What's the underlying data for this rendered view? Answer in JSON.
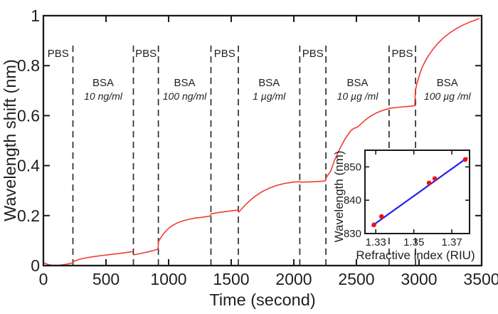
{
  "figure": {
    "description": "Sensorgram of wavelength shift versus time for alternating PBS buffer and BSA concentration steps, with inset refractive-index calibration plot",
    "background_color": "#ffffff",
    "frame_color": "#1a1a1a",
    "divider_color": "#2e2e2e"
  },
  "chart_data": {
    "type": "line",
    "title": "",
    "xlabel": "Time (second)",
    "ylabel": "Wavelength shift (nm)",
    "xlim": [
      0,
      3500
    ],
    "ylim": [
      0,
      1
    ],
    "grid": false,
    "x_ticks": [
      0,
      500,
      1000,
      1500,
      2000,
      2500,
      3000,
      3500
    ],
    "y_ticks": [
      0,
      0.2,
      0.4,
      0.6,
      0.8,
      1
    ],
    "y_tick_labels": [
      "0",
      "0.2",
      "0.4",
      "0.6",
      "0.8",
      "1"
    ],
    "line_color": "#f23b32",
    "phase_boundaries_s": [
      236,
      719,
      918,
      1338,
      1557,
      2048,
      2256,
      2761,
      2972
    ],
    "regions": [
      {
        "label": "PBS",
        "sublabel": "",
        "start": 0,
        "end": 236
      },
      {
        "label": "BSA",
        "sublabel": "10 ng/ml",
        "start": 236,
        "end": 719
      },
      {
        "label": "PBS",
        "sublabel": "",
        "start": 719,
        "end": 918
      },
      {
        "label": "BSA",
        "sublabel": "100 ng/ml",
        "start": 918,
        "end": 1338
      },
      {
        "label": "PBS",
        "sublabel": "",
        "start": 1338,
        "end": 1557
      },
      {
        "label": "BSA",
        "sublabel": "1 µg/ml",
        "start": 1557,
        "end": 2048
      },
      {
        "label": "PBS",
        "sublabel": "",
        "start": 2048,
        "end": 2256
      },
      {
        "label": "BSA",
        "sublabel": "10 µg /ml",
        "start": 2256,
        "end": 2761
      },
      {
        "label": "PBS",
        "sublabel": "",
        "start": 2761,
        "end": 2972
      },
      {
        "label": "BSA",
        "sublabel": "100 µg /ml",
        "start": 2972,
        "end": 3480
      }
    ],
    "series": [
      {
        "name": "wavelength-shift",
        "color": "#f23b32",
        "segments": [
          [
            [
              0,
              0.013
            ],
            [
              30,
              0.005
            ],
            [
              70,
              0.001
            ],
            [
              120,
              0.001
            ],
            [
              170,
              0.004
            ],
            [
              210,
              0.008
            ],
            [
              233,
              0.011
            ],
            [
              245,
              0.017
            ],
            [
              285,
              0.025
            ],
            [
              330,
              0.03
            ],
            [
              390,
              0.035
            ],
            [
              460,
              0.04
            ],
            [
              530,
              0.044
            ],
            [
              600,
              0.048
            ],
            [
              660,
              0.052
            ],
            [
              714,
              0.056
            ]
          ],
          [
            [
              724,
              0.043
            ],
            [
              760,
              0.047
            ],
            [
              800,
              0.051
            ],
            [
              845,
              0.056
            ],
            [
              880,
              0.06
            ],
            [
              905,
              0.064
            ],
            [
              916,
              0.069
            ],
            [
              919,
              0.096
            ],
            [
              938,
              0.112
            ],
            [
              960,
              0.128
            ],
            [
              985,
              0.142
            ],
            [
              1010,
              0.153
            ],
            [
              1040,
              0.163
            ],
            [
              1075,
              0.172
            ],
            [
              1115,
              0.179
            ],
            [
              1160,
              0.185
            ],
            [
              1210,
              0.19
            ],
            [
              1260,
              0.193
            ],
            [
              1305,
              0.196
            ],
            [
              1336,
              0.199
            ],
            [
              1340,
              0.207
            ],
            [
              1395,
              0.212
            ],
            [
              1455,
              0.216
            ],
            [
              1515,
              0.22
            ],
            [
              1555,
              0.222
            ],
            [
              1560,
              0.214
            ],
            [
              1585,
              0.228
            ],
            [
              1615,
              0.244
            ],
            [
              1655,
              0.263
            ],
            [
              1700,
              0.281
            ],
            [
              1750,
              0.297
            ],
            [
              1805,
              0.31
            ],
            [
              1865,
              0.321
            ],
            [
              1930,
              0.329
            ],
            [
              1995,
              0.334
            ],
            [
              2046,
              0.336
            ],
            [
              2055,
              0.334
            ],
            [
              2135,
              0.335
            ],
            [
              2215,
              0.337
            ],
            [
              2252,
              0.339
            ],
            [
              2262,
              0.355
            ],
            [
              2295,
              0.378
            ],
            [
              2325,
              0.422
            ],
            [
              2365,
              0.465
            ],
            [
              2410,
              0.508
            ],
            [
              2455,
              0.54
            ],
            [
              2480,
              0.549
            ],
            [
              2505,
              0.553
            ],
            [
              2535,
              0.566
            ],
            [
              2570,
              0.582
            ],
            [
              2610,
              0.597
            ],
            [
              2655,
              0.61
            ],
            [
              2705,
              0.62
            ],
            [
              2745,
              0.626
            ],
            [
              2759,
              0.629
            ],
            [
              2770,
              0.63
            ],
            [
              2845,
              0.634
            ],
            [
              2915,
              0.637
            ],
            [
              2966,
              0.64
            ],
            [
              2971,
              0.7
            ],
            [
              2983,
              0.728
            ],
            [
              3000,
              0.757
            ],
            [
              3020,
              0.787
            ],
            [
              3045,
              0.814
            ],
            [
              3075,
              0.84
            ],
            [
              3110,
              0.865
            ],
            [
              3150,
              0.889
            ],
            [
              3195,
              0.911
            ],
            [
              3245,
              0.931
            ],
            [
              3295,
              0.947
            ],
            [
              3345,
              0.961
            ],
            [
              3395,
              0.972
            ],
            [
              3440,
              0.981
            ],
            [
              3478,
              0.988
            ]
          ]
        ]
      }
    ],
    "inset": {
      "type": "scatter",
      "xlabel": "Refractive index (RIU)",
      "ylabel": "Wavelength (nm)",
      "xlim": [
        1.3243,
        1.3793
      ],
      "ylim": [
        830,
        855
      ],
      "x_ticks": [
        1.33,
        1.35,
        1.37
      ],
      "x_tick_labels": [
        "1.33",
        "1.35",
        "1.37"
      ],
      "y_ticks": [
        830,
        840,
        850
      ],
      "y_tick_labels": [
        "830",
        "840",
        "850"
      ],
      "point_color": "#ee1111",
      "line_color": "#2323ee",
      "points": [
        [
          1.329,
          832.6
        ],
        [
          1.333,
          835.1
        ],
        [
          1.358,
          845.2
        ],
        [
          1.361,
          846.5
        ],
        [
          1.377,
          852.2
        ]
      ],
      "fit_line": [
        [
          1.3278,
          832.2
        ],
        [
          1.3782,
          852.8
        ]
      ]
    }
  }
}
